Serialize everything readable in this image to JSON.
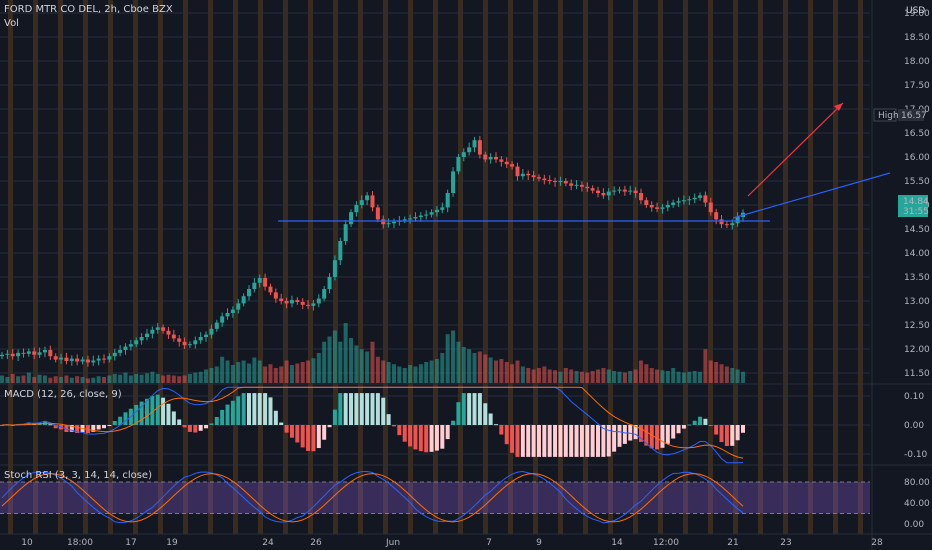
{
  "header": {
    "symbol_line": "FORD MTR CO DEL, 2h, Cboe BZX",
    "volume_label": "Vol",
    "currency": "USD"
  },
  "macd": {
    "label": "MACD (12, 26, close, 9)"
  },
  "stoch": {
    "label": "Stoch RSI (3, 3, 14, 14, close)"
  },
  "price_badges": {
    "high_label": "High",
    "high_value": "16.57",
    "last_value": "14.84",
    "countdown": "31:55"
  },
  "colors": {
    "background": "#131722",
    "up": "#26a69a",
    "down": "#ef5350",
    "stripe": "#6b4420",
    "macd_line": "#2962ff",
    "signal_line": "#ff6d00",
    "stoch_k": "#2962ff",
    "stoch_d": "#ff6d00",
    "stoch_band": "#7e57c2",
    "trend_line": "#2962ff",
    "arrow": "#f23645"
  },
  "chart_data": [
    {
      "type": "candlestick",
      "title": "FORD MTR CO DEL, 2h, Cboe BZX",
      "ylim": [
        11.3,
        19.0
      ],
      "y_ticks": [
        "19.00",
        "18.50",
        "18.00",
        "17.50",
        "17.00",
        "16.50",
        "16.00",
        "15.50",
        "15.00",
        "14.50",
        "14.00",
        "13.50",
        "13.00",
        "12.50",
        "12.00",
        "11.50"
      ],
      "x_ticks": [
        "10",
        "18:00",
        "17",
        "19",
        "24",
        "26",
        "Jun",
        "7",
        "9",
        "14",
        "12:00",
        "21",
        "23",
        "28"
      ],
      "close": [
        11.88,
        11.9,
        11.85,
        11.92,
        11.9,
        11.95,
        11.88,
        11.93,
        11.98,
        11.85,
        11.78,
        11.82,
        11.75,
        11.8,
        11.74,
        11.78,
        11.72,
        11.76,
        11.8,
        11.78,
        11.85,
        11.92,
        11.98,
        12.05,
        12.1,
        12.18,
        12.25,
        12.32,
        12.4,
        12.45,
        12.38,
        12.3,
        12.22,
        12.15,
        12.08,
        12.1,
        12.18,
        12.25,
        12.3,
        12.42,
        12.55,
        12.68,
        12.75,
        12.82,
        12.95,
        13.1,
        13.25,
        13.38,
        13.48,
        13.3,
        13.18,
        13.05,
        13.0,
        12.95,
        13.02,
        12.98,
        12.92,
        12.9,
        12.95,
        13.05,
        13.25,
        13.5,
        13.85,
        14.25,
        14.6,
        14.85,
        15.0,
        15.1,
        15.2,
        14.95,
        14.7,
        14.6,
        14.62,
        14.65,
        14.68,
        14.7,
        14.72,
        14.75,
        14.78,
        14.8,
        14.85,
        14.9,
        14.95,
        15.25,
        15.7,
        16.0,
        16.1,
        16.2,
        16.35,
        16.05,
        15.95,
        16.0,
        15.95,
        15.9,
        15.85,
        15.8,
        15.6,
        15.65,
        15.62,
        15.58,
        15.55,
        15.52,
        15.5,
        15.48,
        15.5,
        15.45,
        15.4,
        15.42,
        15.38,
        15.35,
        15.3,
        15.25,
        15.2,
        15.28,
        15.3,
        15.32,
        15.28,
        15.3,
        15.25,
        15.1,
        15.0,
        14.95,
        14.92,
        14.95,
        15.0,
        15.05,
        15.08,
        15.1,
        15.12,
        15.15,
        15.2,
        15.05,
        14.85,
        14.7,
        14.6,
        14.58,
        14.62,
        14.75,
        14.84
      ],
      "volume_max_value": 1.0,
      "volume": [
        0.1,
        0.08,
        0.12,
        0.09,
        0.1,
        0.14,
        0.08,
        0.11,
        0.1,
        0.07,
        0.09,
        0.08,
        0.1,
        0.07,
        0.09,
        0.08,
        0.06,
        0.07,
        0.09,
        0.08,
        0.1,
        0.12,
        0.11,
        0.14,
        0.1,
        0.12,
        0.11,
        0.13,
        0.15,
        0.12,
        0.1,
        0.11,
        0.1,
        0.09,
        0.1,
        0.12,
        0.14,
        0.15,
        0.18,
        0.2,
        0.22,
        0.35,
        0.3,
        0.24,
        0.28,
        0.3,
        0.26,
        0.34,
        0.3,
        0.22,
        0.25,
        0.2,
        0.22,
        0.3,
        0.24,
        0.26,
        0.28,
        0.3,
        0.33,
        0.4,
        0.55,
        0.62,
        0.7,
        0.55,
        0.8,
        0.6,
        0.5,
        0.45,
        0.42,
        0.55,
        0.35,
        0.3,
        0.28,
        0.25,
        0.22,
        0.2,
        0.24,
        0.22,
        0.25,
        0.28,
        0.3,
        0.32,
        0.4,
        0.65,
        0.7,
        0.55,
        0.48,
        0.45,
        0.4,
        0.42,
        0.38,
        0.34,
        0.3,
        0.32,
        0.28,
        0.25,
        0.3,
        0.22,
        0.2,
        0.18,
        0.2,
        0.22,
        0.18,
        0.17,
        0.15,
        0.2,
        0.18,
        0.16,
        0.15,
        0.14,
        0.16,
        0.18,
        0.2,
        0.18,
        0.16,
        0.15,
        0.14,
        0.16,
        0.18,
        0.3,
        0.25,
        0.2,
        0.18,
        0.17,
        0.16,
        0.2,
        0.15,
        0.14,
        0.15,
        0.16,
        0.15,
        0.45,
        0.3,
        0.28,
        0.25,
        0.22,
        0.2,
        0.18,
        0.15
      ]
    },
    {
      "type": "histogram",
      "title": "MACD (12, 26, close, 9)",
      "ylim": [
        -0.15,
        0.15
      ],
      "y_ticks": [
        "0.10",
        "0.00",
        "-0.10"
      ]
    },
    {
      "type": "line",
      "title": "Stoch RSI (3, 3, 14, 14, close)",
      "ylim": [
        -5,
        105
      ],
      "y_ticks": [
        "80.00",
        "40.00",
        "0.00"
      ],
      "band": [
        20,
        80
      ]
    }
  ]
}
